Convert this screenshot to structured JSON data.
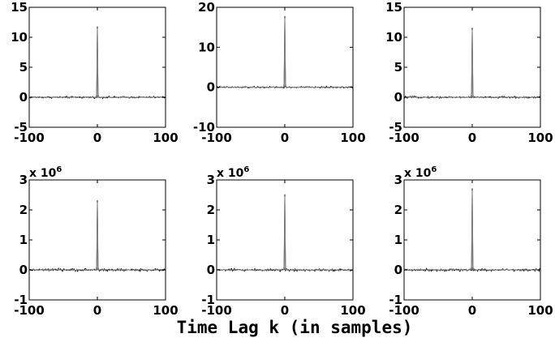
{
  "chart_data": {
    "type": "line",
    "xlabel": "Time Lag k (in samples)",
    "panels": [
      {
        "row": 0,
        "col": 0,
        "xlim": [
          -100,
          100
        ],
        "ylim": [
          -5,
          15
        ],
        "xticks": [
          "-100",
          "0",
          "100"
        ],
        "yticks": [
          "-5",
          "0",
          "5",
          "10",
          "15"
        ],
        "multiplier": "",
        "peak_lag": 0,
        "peak_value": 11.8,
        "noise_level": 0.15
      },
      {
        "row": 0,
        "col": 1,
        "xlim": [
          -100,
          100
        ],
        "ylim": [
          -10,
          20
        ],
        "xticks": [
          "-100",
          "0",
          "100"
        ],
        "yticks": [
          "-10",
          "0",
          "10",
          "20"
        ],
        "multiplier": "",
        "peak_lag": 0,
        "peak_value": 17.8,
        "noise_level": 0.2
      },
      {
        "row": 0,
        "col": 2,
        "xlim": [
          -100,
          100
        ],
        "ylim": [
          -5,
          15
        ],
        "xticks": [
          "-100",
          "0",
          "100"
        ],
        "yticks": [
          "-5",
          "0",
          "5",
          "10",
          "15"
        ],
        "multiplier": "",
        "peak_lag": 0,
        "peak_value": 11.6,
        "noise_level": 0.15
      },
      {
        "row": 1,
        "col": 0,
        "xlim": [
          -100,
          100
        ],
        "ylim": [
          -1,
          3
        ],
        "xticks": [
          "-100",
          "0",
          "100"
        ],
        "yticks": [
          "-1",
          "0",
          "1",
          "2",
          "3"
        ],
        "multiplier": "x 10^6",
        "peak_lag": 0,
        "peak_value": 2.32,
        "noise_level": 0.04
      },
      {
        "row": 1,
        "col": 1,
        "xlim": [
          -100,
          100
        ],
        "ylim": [
          -1,
          3
        ],
        "xticks": [
          "-100",
          "0",
          "100"
        ],
        "yticks": [
          "-1",
          "0",
          "1",
          "2",
          "3"
        ],
        "multiplier": "x 10^6",
        "peak_lag": 0,
        "peak_value": 2.52,
        "noise_level": 0.04
      },
      {
        "row": 1,
        "col": 2,
        "xlim": [
          -100,
          100
        ],
        "ylim": [
          -1,
          3
        ],
        "xticks": [
          "-100",
          "0",
          "100"
        ],
        "yticks": [
          "-1",
          "0",
          "1",
          "2",
          "3"
        ],
        "multiplier": "x 10^6",
        "peak_lag": 0,
        "peak_value": 2.72,
        "noise_level": 0.04
      }
    ],
    "series_colors": {
      "black": "#000000",
      "gray": "#7f7f7f"
    },
    "grid": false
  }
}
